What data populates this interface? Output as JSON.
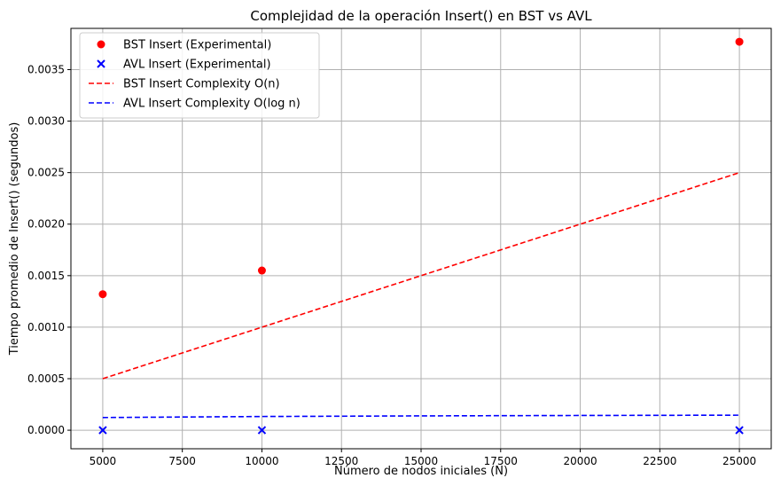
{
  "chart_data": {
    "type": "scatter",
    "title": "Complejidad de la operación Insert() en BST vs AVL",
    "xlabel": "Número de nodos iniciales (N)",
    "ylabel": "Tiempo promedio de Insert() (segundos)",
    "xlim": [
      4000,
      26000
    ],
    "ylim": [
      -0.00018,
      0.0039
    ],
    "xticks": [
      5000,
      7500,
      10000,
      12500,
      15000,
      17500,
      20000,
      22500,
      25000
    ],
    "xtick_labels": [
      "5000",
      "7500",
      "10000",
      "12500",
      "15000",
      "17500",
      "20000",
      "22500",
      "25000"
    ],
    "yticks": [
      0,
      0.0005,
      0.001,
      0.0015,
      0.002,
      0.0025,
      0.003,
      0.0035
    ],
    "ytick_labels": [
      "0.0000",
      "0.0005",
      "0.0010",
      "0.0015",
      "0.0020",
      "0.0025",
      "0.0030",
      "0.0035"
    ],
    "grid": true,
    "legend_position": "top-left",
    "series": [
      {
        "name": "BST Insert (Experimental)",
        "kind": "scatter",
        "marker": "circle",
        "color": "#ff0000",
        "x": [
          5000,
          10000,
          25000
        ],
        "y": [
          0.00132,
          0.00155,
          0.00377
        ]
      },
      {
        "name": "AVL Insert (Experimental)",
        "kind": "scatter",
        "marker": "x",
        "color": "#0000ff",
        "x": [
          5000,
          10000,
          25000
        ],
        "y": [
          0.0,
          0.0,
          0.0
        ]
      },
      {
        "name": "BST Insert Complexity O(n)",
        "kind": "line",
        "dash": "dashed",
        "color": "#ff0000",
        "x": [
          5000,
          25000
        ],
        "y": [
          0.0005,
          0.0025
        ]
      },
      {
        "name": "AVL Insert Complexity O(log n)",
        "kind": "line",
        "dash": "dashed",
        "color": "#0000ff",
        "x": [
          5000,
          10000,
          15000,
          20000,
          25000
        ],
        "y": [
          0.000123,
          0.000133,
          0.000139,
          0.000143,
          0.000146
        ]
      }
    ]
  }
}
